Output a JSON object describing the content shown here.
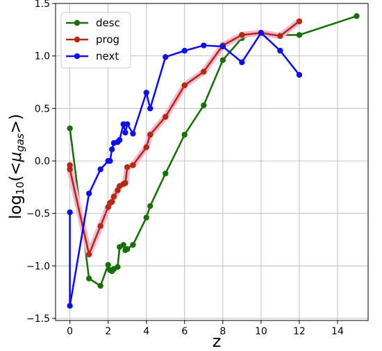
{
  "chart_data": {
    "type": "line",
    "xlabel": "z",
    "ylabel_parts": {
      "prefix": "log",
      "sub1": "10",
      "open": "(<",
      "mu": "μ",
      "sub2": "gas",
      "close": ">)"
    },
    "xlim": [
      -0.75,
      15.6
    ],
    "ylim": [
      -1.52,
      1.5
    ],
    "xticks": [
      0,
      2,
      4,
      6,
      8,
      10,
      12,
      14
    ],
    "yticks": [
      -1.5,
      -1.0,
      -0.5,
      0.0,
      0.5,
      1.0,
      1.5
    ],
    "ytick_labels": [
      "−1.5",
      "−1.0",
      "−0.5",
      "0.0",
      "0.5",
      "1.0",
      "1.5"
    ],
    "grid": true,
    "legend": "top-left",
    "series": [
      {
        "name": "desc",
        "color": "#1a6e0a",
        "shadow": false,
        "x": [
          0,
          1,
          1.6,
          2,
          2.1,
          2.2,
          2.3,
          2.5,
          2.6,
          2.8,
          2.9,
          3.0,
          3.3,
          4.0,
          4.2,
          5.0,
          6.0,
          7.0,
          8.0,
          9.0,
          10.0,
          11.0,
          12.0,
          15.0
        ],
        "y": [
          0.31,
          -1.12,
          -1.19,
          -0.99,
          -1.04,
          -1.05,
          -1.03,
          -1.01,
          -0.82,
          -0.8,
          -0.85,
          -0.84,
          -0.8,
          -0.54,
          -0.43,
          -0.12,
          0.25,
          0.53,
          0.96,
          1.17,
          1.22,
          1.2,
          1.2,
          1.38
        ]
      },
      {
        "name": "prog",
        "color": "#b22a10",
        "shadow": true,
        "x": [
          0,
          0,
          1,
          1.6,
          2,
          2.1,
          2.2,
          2.3,
          2.5,
          2.6,
          2.8,
          2.9,
          3.0,
          3.3,
          4.0,
          4.2,
          5.0,
          6.0,
          7.0,
          8.0,
          9.0,
          10.0,
          11.0,
          12.0
        ],
        "y": [
          -0.04,
          -0.08,
          -0.89,
          -0.62,
          -0.44,
          -0.4,
          -0.39,
          -0.34,
          -0.28,
          -0.24,
          -0.22,
          -0.21,
          -0.06,
          -0.04,
          0.13,
          0.25,
          0.42,
          0.72,
          0.85,
          1.1,
          1.2,
          1.22,
          1.19,
          1.33
        ]
      },
      {
        "name": "next",
        "color": "#1010e6",
        "shadow": false,
        "x": [
          0,
          0,
          1,
          1.6,
          2,
          2.1,
          2.2,
          2.3,
          2.5,
          2.6,
          2.8,
          2.9,
          3.0,
          3.3,
          4.0,
          4.2,
          5.0,
          6.0,
          7.0,
          8.0,
          9.0,
          10.0,
          11.0,
          12.0
        ],
        "y": [
          -0.49,
          -1.38,
          -0.31,
          -0.08,
          -0.0,
          -0.0,
          0.11,
          0.17,
          0.18,
          0.2,
          0.35,
          0.27,
          0.35,
          0.26,
          0.65,
          0.5,
          0.99,
          1.05,
          1.1,
          1.09,
          0.94,
          1.22,
          1.05,
          0.82
        ]
      }
    ]
  }
}
